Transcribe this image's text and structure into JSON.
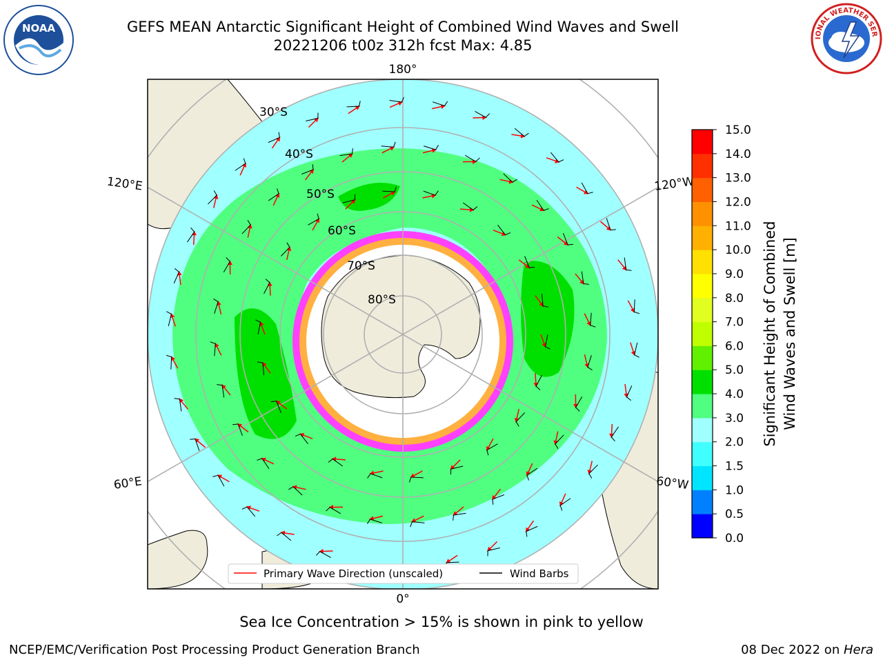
{
  "header": {
    "title_line1": "GEFS MEAN Antarctic Significant Height of Combined Wind Waves and Swell",
    "title_line2": "20221206 t00z 312h fcst   Max: 4.85"
  },
  "map": {
    "projection": "south-polar-stereographic",
    "longitude_labels": {
      "top": "180°",
      "bottom": "0°",
      "upper_left": "120°E",
      "lower_left": "60°E",
      "upper_right": "120°W",
      "lower_right": "60°W"
    },
    "latitude_labels": [
      "30°S",
      "40°S",
      "50°S",
      "60°S",
      "70°S",
      "80°S"
    ],
    "colors": {
      "land": "#efecdc",
      "ocean_low": "#a0ffff",
      "ocean_mid": "#50ff80",
      "ocean_high": "#00e000",
      "sea_ice_white": "#ffffff",
      "sea_ice_pink": "#ff40ff",
      "sea_ice_orange": "#ffb040",
      "graticule": "#b0b0b0",
      "arrow": "#ff0000",
      "barb": "#000000"
    }
  },
  "legend": {
    "primary_wave": "Primary Wave Direction (unscaled)",
    "wind_barbs": "Wind Barbs",
    "primary_wave_color": "#ff0000",
    "wind_barbs_color": "#000000"
  },
  "colorbar": {
    "label_line1": "Significant Height of Combined",
    "label_line2": "Wind Waves and Swell [m]",
    "ticks": [
      "0.0",
      "0.5",
      "1.0",
      "1.5",
      "2.0",
      "3.0",
      "4.0",
      "5.0",
      "6.0",
      "7.0",
      "8.0",
      "9.0",
      "10.0",
      "11.0",
      "12.0",
      "13.0",
      "14.0",
      "15.0"
    ],
    "colors": [
      "#0000ff",
      "#0080ff",
      "#00e5ff",
      "#40ffff",
      "#a0ffff",
      "#50ff80",
      "#00e000",
      "#60f000",
      "#c0ff00",
      "#e0ff20",
      "#ffff00",
      "#ffe000",
      "#ffb000",
      "#ff9000",
      "#ff6000",
      "#ff3000",
      "#ff0000"
    ]
  },
  "note": "Sea Ice Concentration > 15% is shown in pink to yellow",
  "footer": {
    "left": "NCEP/EMC/Verification Post Processing Product Generation Branch",
    "right_prefix": "08 Dec 2022 on ",
    "right_host": "Hera"
  },
  "logos": {
    "left": "NOAA",
    "right": "NATIONAL WEATHER SERVICE"
  }
}
